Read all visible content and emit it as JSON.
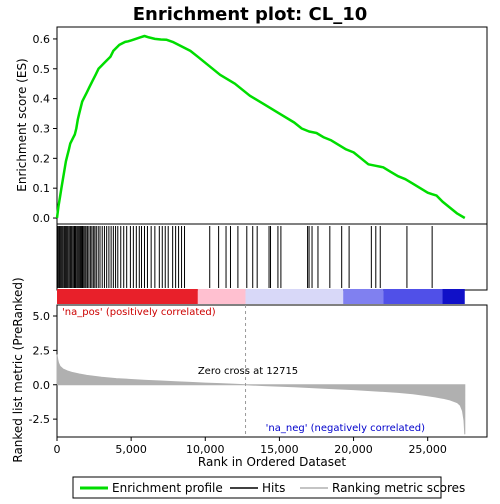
{
  "chart_data": {
    "type": "line",
    "title": "Enrichment plot: CL_10",
    "xlabel": "Rank in Ordered Dataset",
    "colors": {
      "enrichment": "#00dd00",
      "hits": "#000000",
      "metric": "#b0b0b0",
      "pos": "#dd0000",
      "neg": "#0000cc"
    },
    "top_panel": {
      "ylabel": "Enrichment score (ES)",
      "ylim": [
        -0.02,
        0.64
      ],
      "yticks": [
        0.0,
        0.1,
        0.2,
        0.3,
        0.4,
        0.5,
        0.6
      ],
      "ytick_labels": [
        "0.0",
        "0.1",
        "0.2",
        "0.3",
        "0.4",
        "0.5",
        "0.6"
      ],
      "es_curve": {
        "x": [
          0,
          100,
          200,
          300,
          400,
          500,
          600,
          700,
          800,
          900,
          1000,
          1100,
          1200,
          1300,
          1400,
          1500,
          1600,
          1700,
          1800,
          2000,
          2200,
          2400,
          2600,
          2800,
          3000,
          3200,
          3400,
          3600,
          3800,
          4000,
          4200,
          4400,
          4600,
          4800,
          5000,
          5300,
          5600,
          5900,
          6200,
          6600,
          7000,
          7400,
          7800,
          8200,
          8600,
          9000,
          9500,
          10000,
          11000,
          12000,
          13000,
          14000,
          15000,
          16000,
          16500,
          17000,
          17500,
          18000,
          18500,
          19000,
          19500,
          20000,
          20500,
          21000,
          21500,
          22000,
          22500,
          23000,
          23500,
          24000,
          24500,
          25000,
          25300,
          25600,
          26000,
          26500,
          27000,
          27500
        ],
        "y": [
          0.0,
          0.04,
          0.07,
          0.1,
          0.13,
          0.16,
          0.19,
          0.21,
          0.23,
          0.25,
          0.26,
          0.27,
          0.28,
          0.3,
          0.33,
          0.35,
          0.37,
          0.39,
          0.4,
          0.42,
          0.44,
          0.46,
          0.48,
          0.5,
          0.51,
          0.52,
          0.53,
          0.54,
          0.56,
          0.57,
          0.58,
          0.585,
          0.59,
          0.592,
          0.595,
          0.6,
          0.605,
          0.61,
          0.605,
          0.6,
          0.598,
          0.597,
          0.59,
          0.58,
          0.57,
          0.56,
          0.54,
          0.52,
          0.48,
          0.45,
          0.41,
          0.38,
          0.35,
          0.32,
          0.3,
          0.29,
          0.285,
          0.27,
          0.26,
          0.245,
          0.23,
          0.22,
          0.2,
          0.18,
          0.175,
          0.17,
          0.155,
          0.14,
          0.13,
          0.115,
          0.1,
          0.085,
          0.08,
          0.075,
          0.055,
          0.035,
          0.015,
          0.0
        ]
      }
    },
    "hits": {
      "x": [
        30,
        80,
        150,
        210,
        280,
        350,
        420,
        500,
        580,
        650,
        720,
        800,
        880,
        950,
        1020,
        1100,
        1180,
        1250,
        1330,
        1400,
        1470,
        1540,
        1600,
        1660,
        1720,
        1800,
        1880,
        1960,
        2050,
        2150,
        2250,
        2350,
        2450,
        2550,
        2650,
        2780,
        2900,
        3050,
        3200,
        3350,
        3500,
        3650,
        3800,
        3950,
        4100,
        4300,
        4500,
        4700,
        4950,
        5150,
        5350,
        5550,
        5700,
        5900,
        6100,
        6350,
        6600,
        6900,
        7100,
        7300,
        7500,
        7800,
        8000,
        8200,
        8400,
        8600,
        10300,
        10900,
        11400,
        11700,
        12200,
        12800,
        13200,
        13500,
        14300,
        14400,
        14900,
        15100,
        16900,
        17000,
        17200,
        17600,
        18400,
        19200,
        19700,
        21200,
        21500,
        21800,
        23600,
        25300
      ]
    },
    "bands": [
      {
        "from": 0,
        "to": 9500,
        "color": "#e8202a"
      },
      {
        "from": 9500,
        "to": 12715,
        "color": "#ffc0d0"
      },
      {
        "from": 12715,
        "to": 19300,
        "color": "#d8d8f8"
      },
      {
        "from": 19300,
        "to": 22000,
        "color": "#8080f0"
      },
      {
        "from": 22000,
        "to": 26000,
        "color": "#5050e8"
      },
      {
        "from": 26000,
        "to": 27500,
        "color": "#1010c8"
      }
    ],
    "bottom_panel": {
      "ylabel": "Ranked list metric (PreRanked)",
      "ylim": [
        -3.8,
        5.8
      ],
      "yticks": [
        5.0,
        2.5,
        0.0,
        -2.5
      ],
      "ytick_labels": [
        "5.0",
        "2.5",
        "0.0",
        "-2.5"
      ],
      "metric_curve": {
        "x": [
          0,
          50,
          100,
          200,
          400,
          700,
          1000,
          1500,
          2000,
          3000,
          4000,
          5000,
          6000,
          7000,
          8000,
          9000,
          10000,
          11000,
          12000,
          12715,
          14000,
          16000,
          18000,
          20000,
          22000,
          23000,
          24000,
          25000,
          25500,
          26000,
          26500,
          27000,
          27200,
          27350,
          27450,
          27500
        ],
        "y": [
          2.2,
          1.85,
          1.6,
          1.35,
          1.15,
          1.0,
          0.9,
          0.78,
          0.68,
          0.55,
          0.45,
          0.38,
          0.32,
          0.27,
          0.22,
          0.17,
          0.12,
          0.08,
          0.03,
          0.0,
          -0.06,
          -0.15,
          -0.25,
          -0.35,
          -0.48,
          -0.56,
          -0.66,
          -0.8,
          -0.88,
          -0.98,
          -1.1,
          -1.3,
          -1.5,
          -1.9,
          -2.6,
          -3.6
        ]
      },
      "zero_cross_x": 12715,
      "zero_cross_label": "Zero cross at 12715",
      "pos_label": "'na_pos' (positively correlated)",
      "neg_label": "'na_neg' (negatively correlated)"
    },
    "xlim": [
      0,
      29000
    ],
    "xticks": [
      0,
      5000,
      10000,
      15000,
      20000,
      25000
    ],
    "xtick_labels": [
      "0",
      "5,000",
      "10,000",
      "15,000",
      "20,000",
      "25,000"
    ],
    "legend": {
      "placement": "bottom",
      "entries": [
        {
          "label": "Enrichment profile",
          "kind": "line",
          "color": "#00dd00"
        },
        {
          "label": "Hits",
          "kind": "line",
          "color": "#000000"
        },
        {
          "label": "Ranking metric scores",
          "kind": "line",
          "color": "#b0b0b0"
        }
      ]
    }
  }
}
